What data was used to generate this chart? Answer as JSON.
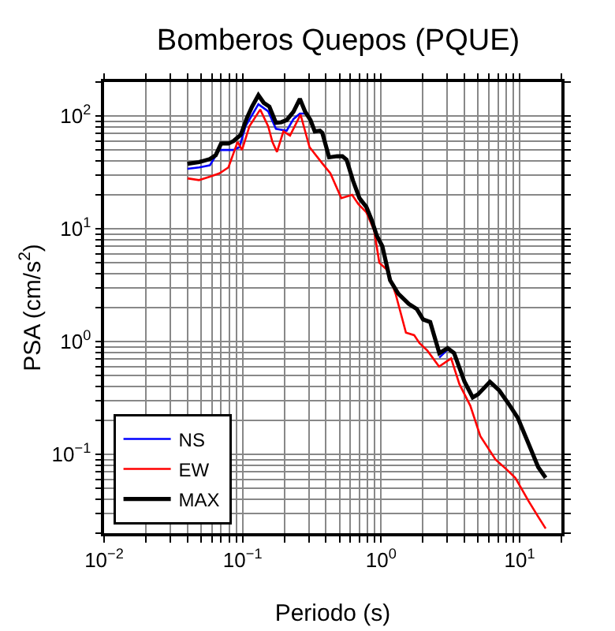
{
  "chart_data": {
    "type": "line",
    "title": "Bomberos Quepos (PQUE)",
    "xlabel": "Periodo (s)",
    "ylabel": "PSA (cm/s$^{2}$)",
    "log": "xy",
    "grid": true,
    "legend": "bottom left",
    "marker": "none",
    "line_style": "solid",
    "xlim": [
      0.01,
      20
    ],
    "ylim": [
      0.02,
      200
    ],
    "xticks": [
      {
        "value": 0.01,
        "label": "10$^{−2}$"
      },
      {
        "value": 0.02,
        "label": null
      },
      {
        "value": 0.03,
        "label": null
      },
      {
        "value": 0.04,
        "label": null
      },
      {
        "value": 0.05,
        "label": null
      },
      {
        "value": 0.06,
        "label": null
      },
      {
        "value": 0.07,
        "label": null
      },
      {
        "value": 0.08,
        "label": null
      },
      {
        "value": 0.09,
        "label": null
      },
      {
        "value": 0.1,
        "label": "10$^{−1}$"
      },
      {
        "value": 0.2,
        "label": null
      },
      {
        "value": 0.3,
        "label": null
      },
      {
        "value": 0.4,
        "label": null
      },
      {
        "value": 0.5,
        "label": null
      },
      {
        "value": 0.6,
        "label": null
      },
      {
        "value": 0.7,
        "label": null
      },
      {
        "value": 0.8,
        "label": null
      },
      {
        "value": 0.9,
        "label": null
      },
      {
        "value": 1,
        "label": "10$^{0}$"
      },
      {
        "value": 2,
        "label": null
      },
      {
        "value": 3,
        "label": null
      },
      {
        "value": 4,
        "label": null
      },
      {
        "value": 5,
        "label": null
      },
      {
        "value": 6,
        "label": null
      },
      {
        "value": 7,
        "label": null
      },
      {
        "value": 8,
        "label": null
      },
      {
        "value": 9,
        "label": null
      },
      {
        "value": 10,
        "label": "10$^{1}$"
      },
      {
        "value": 20,
        "label": null
      }
    ],
    "yticks": [
      {
        "value": 0.02,
        "label": null
      },
      {
        "value": 0.03,
        "label": null
      },
      {
        "value": 0.04,
        "label": null
      },
      {
        "value": 0.05,
        "label": null
      },
      {
        "value": 0.06,
        "label": null
      },
      {
        "value": 0.07,
        "label": null
      },
      {
        "value": 0.08,
        "label": null
      },
      {
        "value": 0.09,
        "label": null
      },
      {
        "value": 0.1,
        "label": "10$^{−1}$"
      },
      {
        "value": 0.2,
        "label": null
      },
      {
        "value": 0.3,
        "label": null
      },
      {
        "value": 0.4,
        "label": null
      },
      {
        "value": 0.5,
        "label": null
      },
      {
        "value": 0.6,
        "label": null
      },
      {
        "value": 0.7,
        "label": null
      },
      {
        "value": 0.8,
        "label": null
      },
      {
        "value": 0.9,
        "label": null
      },
      {
        "value": 1,
        "label": "10$^{0}$"
      },
      {
        "value": 2,
        "label": null
      },
      {
        "value": 3,
        "label": null
      },
      {
        "value": 4,
        "label": null
      },
      {
        "value": 5,
        "label": null
      },
      {
        "value": 6,
        "label": null
      },
      {
        "value": 7,
        "label": null
      },
      {
        "value": 8,
        "label": null
      },
      {
        "value": 9,
        "label": null
      },
      {
        "value": 10,
        "label": "10$^{1}$"
      },
      {
        "value": 20,
        "label": null
      },
      {
        "value": 30,
        "label": null
      },
      {
        "value": 40,
        "label": null
      },
      {
        "value": 50,
        "label": null
      },
      {
        "value": 60,
        "label": null
      },
      {
        "value": 70,
        "label": null
      },
      {
        "value": 80,
        "label": null
      },
      {
        "value": 90,
        "label": null
      },
      {
        "value": 100,
        "label": "10$^{2}$"
      },
      {
        "value": 200,
        "label": null
      }
    ],
    "series": [
      {
        "name": "NS",
        "color": "#0000ff",
        "x": [
          0.04,
          0.0485,
          0.058,
          0.068,
          0.086,
          0.095,
          0.105,
          0.13,
          0.153,
          0.174,
          0.208,
          0.233,
          0.259,
          0.283,
          0.309,
          0.332,
          0.362,
          0.376,
          0.421,
          0.481,
          0.525,
          0.563,
          0.627,
          0.697,
          0.782,
          0.853,
          0.93,
          1.02,
          1.16,
          1.33,
          1.58,
          1.81,
          2.01,
          2.26,
          2.63,
          3.02
        ],
        "values": [
          34,
          35,
          36.5,
          50,
          50,
          53,
          81,
          127,
          110,
          77,
          74,
          94,
          105,
          105,
          null,
          null,
          null,
          null,
          null,
          null,
          null,
          null,
          null,
          null,
          null,
          null,
          null,
          null,
          null,
          null,
          null,
          null,
          null,
          null,
          0.72,
          0.85
        ]
      },
      {
        "name": "EW",
        "color": "#ff0000",
        "x": [
          0.04,
          0.0485,
          0.058,
          0.068,
          0.079,
          0.092,
          0.099,
          0.112,
          0.134,
          0.153,
          0.164,
          0.177,
          0.197,
          0.22,
          0.262,
          0.304,
          0.376,
          0.43,
          0.516,
          0.617,
          0.686,
          0.782,
          0.89,
          0.97,
          1.11,
          1.27,
          1.51,
          1.73,
          1.89,
          2.16,
          2.62,
          3.2,
          3.67,
          4.4,
          5.2,
          6.7,
          8.1,
          9.3,
          11.6,
          13.6,
          15.4
        ],
        "values": [
          28,
          27,
          29,
          31,
          35,
          59,
          50,
          81,
          114,
          81,
          59,
          48,
          73,
          67,
          103,
          53,
          38,
          31,
          18.7,
          20,
          16.5,
          14,
          9.7,
          5.0,
          4.3,
          2.66,
          1.2,
          1.14,
          0.97,
          0.83,
          0.6,
          0.71,
          0.42,
          0.27,
          0.145,
          0.09,
          0.073,
          0.062,
          0.0385,
          0.028,
          0.022
        ]
      },
      {
        "name": "MAX",
        "color": "#000000",
        "x": [
          0.04,
          0.0485,
          0.058,
          0.064,
          0.07,
          0.079,
          0.086,
          0.097,
          0.107,
          0.117,
          0.13,
          0.142,
          0.156,
          0.174,
          0.19,
          0.208,
          0.233,
          0.259,
          0.283,
          0.309,
          0.332,
          0.362,
          0.376,
          0.421,
          0.481,
          0.525,
          0.563,
          0.627,
          0.697,
          0.782,
          0.853,
          0.93,
          1.02,
          1.16,
          1.33,
          1.58,
          1.81,
          2.01,
          2.26,
          2.63,
          3.02,
          3.36,
          4.0,
          4.58,
          5.0,
          6.1,
          7.1,
          8.5,
          9.7,
          11.6,
          13.6,
          15.4
        ],
        "values": [
          37.7,
          39,
          41.5,
          45,
          57,
          57,
          60,
          68,
          95,
          121,
          153,
          131,
          121,
          87,
          88,
          92,
          109,
          142,
          109,
          92,
          73,
          74,
          71,
          43,
          44,
          44,
          41,
          26.6,
          18.7,
          15.6,
          12,
          8.7,
          7.0,
          3.5,
          2.66,
          2.16,
          1.94,
          1.57,
          1.49,
          0.79,
          0.875,
          0.79,
          0.44,
          0.32,
          0.34,
          0.44,
          0.37,
          0.27,
          0.21,
          0.124,
          0.077,
          0.062
        ]
      }
    ]
  }
}
